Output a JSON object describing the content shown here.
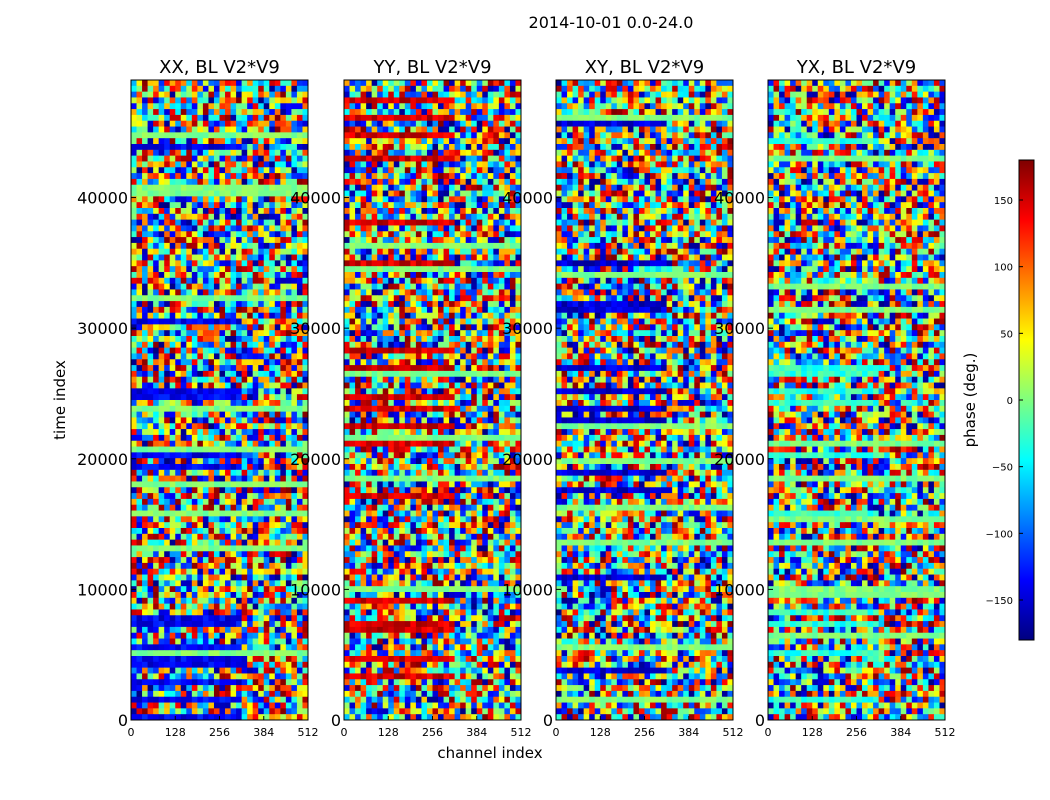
{
  "figure": {
    "title": "2014-10-01 0.0-24.0",
    "xlabel": "channel index",
    "ylabel": "time index"
  },
  "chart_data": [
    {
      "type": "heatmap",
      "title": "XX, BL V2*V9",
      "xlabel": "channel index",
      "ylabel": "time index",
      "xlim": [
        0,
        512
      ],
      "ylim": [
        0,
        49000
      ],
      "xticks": [
        "0",
        "128",
        "256",
        "384",
        "512"
      ],
      "yticks": [
        "0",
        "10000",
        "20000",
        "30000",
        "40000"
      ],
      "dominant_phase_deg": -140
    },
    {
      "type": "heatmap",
      "title": "YY, BL V2*V9",
      "xlabel": "channel index",
      "ylabel": "time index",
      "xlim": [
        0,
        512
      ],
      "ylim": [
        0,
        49000
      ],
      "xticks": [
        "0",
        "128",
        "256",
        "384",
        "512"
      ],
      "yticks": [
        "0",
        "10000",
        "20000",
        "30000",
        "40000"
      ],
      "dominant_phase_deg": 150
    },
    {
      "type": "heatmap",
      "title": "XY, BL V2*V9",
      "xlabel": "channel index",
      "ylabel": "time index",
      "xlim": [
        0,
        512
      ],
      "ylim": [
        0,
        49000
      ],
      "xticks": [
        "0",
        "128",
        "256",
        "384",
        "512"
      ],
      "yticks": [
        "0",
        "10000",
        "20000",
        "30000",
        "40000"
      ],
      "dominant_phase_deg": -150
    },
    {
      "type": "heatmap",
      "title": "YX, BL V2*V9",
      "xlabel": "channel index",
      "ylabel": "time index",
      "xlim": [
        0,
        512
      ],
      "ylim": [
        0,
        49000
      ],
      "xticks": [
        "0",
        "128",
        "256",
        "384",
        "512"
      ],
      "yticks": [
        "0",
        "10000",
        "20000",
        "30000",
        "40000"
      ],
      "dominant_phase_deg": -30
    }
  ],
  "colorbar": {
    "label": "phase (deg.)",
    "range": [
      -180,
      180
    ],
    "ticks": [
      "150",
      "100",
      "50",
      "0",
      "−50",
      "−100",
      "−150"
    ],
    "tick_values": [
      150,
      100,
      50,
      0,
      -50,
      -100,
      -150
    ],
    "colormap": "jet",
    "colors": [
      "#00007f",
      "#0000ff",
      "#007fff",
      "#00ffff",
      "#7fff7f",
      "#ffff00",
      "#ff7f00",
      "#ff0000",
      "#7f0000"
    ]
  }
}
